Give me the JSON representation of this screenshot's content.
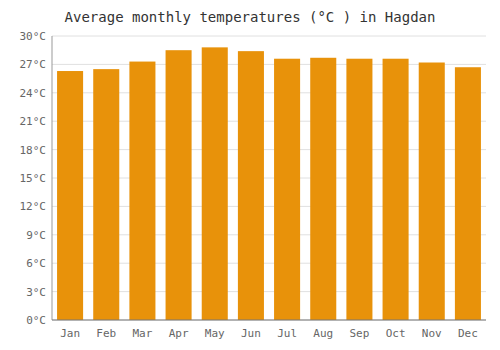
{
  "chart_data": {
    "type": "bar",
    "title": "Average monthly temperatures (°C ) in Hagdan",
    "categories": [
      "Jan",
      "Feb",
      "Mar",
      "Apr",
      "May",
      "Jun",
      "Jul",
      "Aug",
      "Sep",
      "Oct",
      "Nov",
      "Dec"
    ],
    "values": [
      26.3,
      26.5,
      27.3,
      28.5,
      28.8,
      28.4,
      27.6,
      27.7,
      27.6,
      27.6,
      27.2,
      26.7
    ],
    "color": "#E8920A",
    "ylim": [
      0,
      30
    ],
    "yticks": [
      {
        "value": 0,
        "label": "0°C"
      },
      {
        "value": 3,
        "label": "3°C"
      },
      {
        "value": 6,
        "label": "6°C"
      },
      {
        "value": 9,
        "label": "9°C"
      },
      {
        "value": 12,
        "label": "12°C"
      },
      {
        "value": 15,
        "label": "15°C"
      },
      {
        "value": 18,
        "label": "18°C"
      },
      {
        "value": 21,
        "label": "21°C"
      },
      {
        "value": 24,
        "label": "24°C"
      },
      {
        "value": 27,
        "label": "27°C"
      },
      {
        "value": 30,
        "label": "30°C"
      }
    ],
    "grid": true
  }
}
